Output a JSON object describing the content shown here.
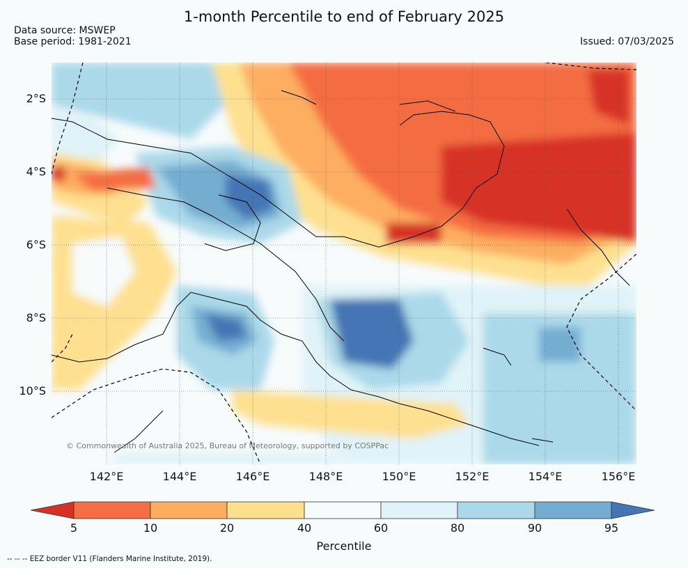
{
  "title": "1-month Percentile to end of February 2025",
  "data_source": "Data source: MSWEP",
  "base_period": "Base period: 1981-2021",
  "issued": "Issued: 07/03/2025",
  "copyright": "© Commonwealth of Australia 2025, Bureau of Meteorology, supported by COSPPac",
  "eez_note": "--  --  -- EEZ border V11 (Flanders Marine Institute, 2019).",
  "lat_labels": [
    "2°S",
    "4°S",
    "6°S",
    "8°S",
    "10°S"
  ],
  "lon_labels": [
    "142°E",
    "144°E",
    "146°E",
    "148°E",
    "150°E",
    "152°E",
    "154°E",
    "156°E"
  ],
  "colorbar": {
    "label": "Percentile",
    "ticks": [
      "5",
      "10",
      "20",
      "40",
      "60",
      "80",
      "90",
      "95"
    ],
    "colors": {
      "below5": "#d73027",
      "5-10": "#f46d43",
      "10-20": "#fdae61",
      "20-40": "#fee090",
      "40-60": "#f7fbfc",
      "60-80": "#e0f3f8",
      "80-90": "#abd9e9",
      "90-95": "#74add1",
      "above95": "#4575b4"
    }
  },
  "map_extent": {
    "lon": [
      141,
      157
    ],
    "lat": [
      -1,
      -12
    ]
  }
}
